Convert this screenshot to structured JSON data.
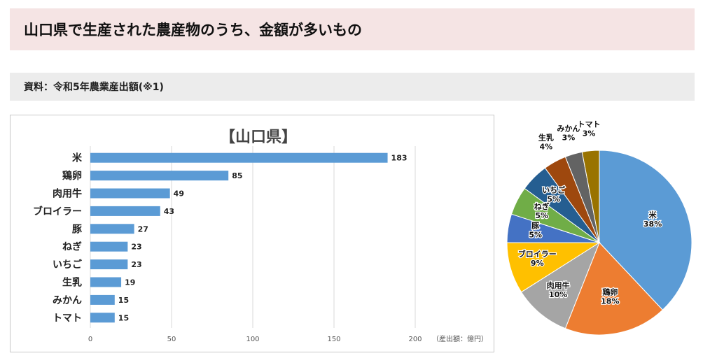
{
  "page": {
    "title": "山口県で生産された農産物のうち、金額が多いもの",
    "source": "資料：令和5年農業産出額(※1)"
  },
  "colors": {
    "bar": "#5b9bd5",
    "title_bg": "#f5e4e4",
    "source_bg": "#ececec",
    "grid": "#d9d9d9"
  },
  "chart_data": [
    {
      "type": "bar",
      "orientation": "horizontal",
      "title": "【山口県】",
      "unit_label": "（産出額：億円）",
      "categories": [
        "米",
        "鶏卵",
        "肉用牛",
        "ブロイラー",
        "豚",
        "ねぎ",
        "いちご",
        "生乳",
        "みかん",
        "トマト"
      ],
      "values": [
        183,
        85,
        49,
        43,
        27,
        23,
        23,
        19,
        15,
        15
      ],
      "xlim": [
        0,
        200
      ],
      "xticks": [
        0,
        50,
        100,
        150,
        200
      ],
      "grid": true,
      "legend": "none"
    },
    {
      "type": "pie",
      "slices": [
        {
          "label": "米",
          "pct": "38%",
          "value": 38,
          "color": "#5b9bd5"
        },
        {
          "label": "鶏卵",
          "pct": "18%",
          "value": 18,
          "color": "#ed7d31"
        },
        {
          "label": "肉用牛",
          "pct": "10%",
          "value": 10,
          "color": "#a5a5a5"
        },
        {
          "label": "ブロイラー",
          "pct": "9%",
          "value": 9,
          "color": "#ffc000"
        },
        {
          "label": "豚",
          "pct": "5%",
          "value": 5,
          "color": "#4472c4"
        },
        {
          "label": "ねぎ",
          "pct": "5%",
          "value": 5,
          "color": "#70ad47"
        },
        {
          "label": "いちご",
          "pct": "5%",
          "value": 5,
          "color": "#255e91"
        },
        {
          "label": "生乳",
          "pct": "4%",
          "value": 4,
          "color": "#9e480e"
        },
        {
          "label": "みかん",
          "pct": "3%",
          "value": 3,
          "color": "#636363"
        },
        {
          "label": "トマト",
          "pct": "3%",
          "value": 3,
          "color": "#997300"
        }
      ]
    }
  ]
}
